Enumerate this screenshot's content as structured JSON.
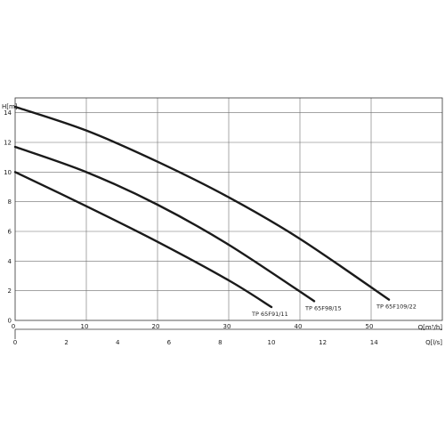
{
  "chart_data": {
    "type": "line",
    "title": "",
    "y_axis": {
      "label": "H[m]",
      "range": [
        0,
        15
      ],
      "ticks": [
        0,
        2,
        4,
        6,
        8,
        10,
        12,
        14
      ]
    },
    "x_axis_primary": {
      "label": "Q[m³/h]",
      "range": [
        0,
        60
      ],
      "ticks": [
        0,
        10,
        20,
        30,
        40,
        50
      ]
    },
    "x_axis_secondary": {
      "label": "Q[l/s]",
      "range": [
        0,
        16.6667
      ],
      "ticks": [
        0,
        2,
        4,
        6,
        8,
        10,
        12,
        14
      ]
    },
    "grid": true,
    "series": [
      {
        "name": "TP 65F109/22",
        "x": [
          0,
          10,
          20,
          30,
          40,
          52.5
        ],
        "y": [
          14.4,
          12.8,
          10.7,
          8.3,
          5.5,
          1.4
        ]
      },
      {
        "name": "TP 65F98/15",
        "x": [
          0,
          10,
          20,
          30,
          42
        ],
        "y": [
          11.7,
          10.0,
          7.8,
          5.1,
          1.3
        ]
      },
      {
        "name": "TP 65F91/11",
        "x": [
          0,
          10,
          20,
          30,
          36
        ],
        "y": [
          10.0,
          7.7,
          5.3,
          2.7,
          0.9
        ]
      }
    ]
  }
}
